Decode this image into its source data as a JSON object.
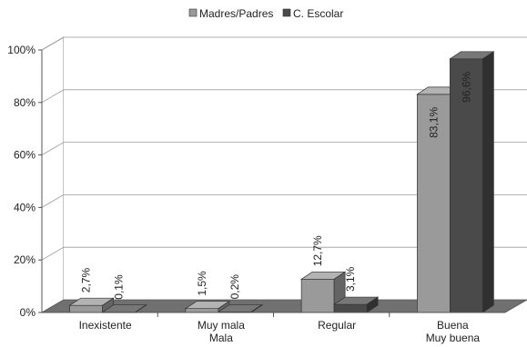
{
  "chart_data": {
    "type": "bar",
    "categories": [
      [
        "Inexistente"
      ],
      [
        "Muy mala",
        "Mala"
      ],
      [
        "Regular"
      ],
      [
        "Buena",
        "Muy buena"
      ]
    ],
    "series": [
      {
        "name": "Madres/Padres",
        "values": [
          2.7,
          1.5,
          12.7,
          83.1
        ],
        "labels": [
          "2,7%",
          "1,5%",
          "12,7%",
          "83,1%"
        ],
        "color": "#9a9a9a"
      },
      {
        "name": "C. Escolar",
        "values": [
          0.1,
          0.2,
          3.1,
          96.6
        ],
        "labels": [
          "0,1%",
          "0,2%",
          "3,1%",
          "96,6%"
        ],
        "color": "#4a4a4a"
      }
    ],
    "ylim": [
      0,
      100
    ],
    "yticks": [
      0,
      20,
      40,
      60,
      80,
      100
    ],
    "ytick_labels": [
      "0%",
      "20%",
      "40%",
      "60%",
      "80%",
      "100%"
    ],
    "title": "",
    "xlabel": "",
    "ylabel": "",
    "legend_position": "top-center",
    "grid": true,
    "style": "3d-clustered-column"
  }
}
